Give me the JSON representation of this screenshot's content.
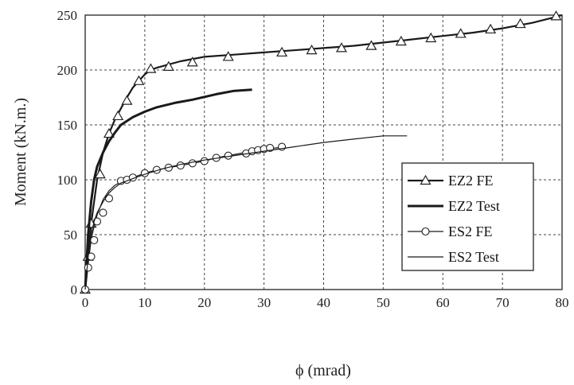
{
  "chart_data": {
    "type": "line",
    "xlabel": "ϕ (mrad)",
    "ylabel": "Moment (kN.m.)",
    "xlim": [
      0,
      80
    ],
    "ylim": [
      0,
      250
    ],
    "xticks": [
      0,
      10,
      20,
      30,
      40,
      50,
      60,
      70,
      80
    ],
    "yticks": [
      0,
      50,
      100,
      150,
      200,
      250
    ],
    "grid": true,
    "grid_style": "dashed",
    "legend_position": "center-right",
    "series": [
      {
        "name": "EZ2 FE",
        "marker": "triangle",
        "line_weight": "medium",
        "x": [
          0,
          0.2,
          0.5,
          1,
          1.5,
          2,
          3,
          4,
          5,
          6,
          7,
          8,
          9,
          10,
          11,
          12,
          14,
          16,
          20,
          25,
          30,
          35,
          40,
          45,
          50,
          55,
          60,
          65,
          70,
          75,
          78,
          80
        ],
        "y": [
          0,
          10,
          30,
          60,
          80,
          100,
          125,
          142,
          155,
          165,
          175,
          184,
          190,
          196,
          200,
          202,
          205,
          208,
          212,
          214,
          216,
          218,
          220,
          222,
          225,
          228,
          231,
          234,
          238,
          243,
          247,
          250
        ],
        "marker_x": [
          0,
          0.5,
          1,
          2.5,
          4,
          5.5,
          7,
          9,
          11,
          14,
          18,
          24,
          33,
          38,
          43,
          48,
          53,
          58,
          63,
          68,
          73,
          79
        ],
        "marker_y": [
          0,
          30,
          60,
          105,
          142,
          158,
          172,
          190,
          201,
          203,
          207,
          212,
          216,
          218,
          220,
          222,
          226,
          229,
          233,
          237,
          242,
          249
        ]
      },
      {
        "name": "EZ2 Test",
        "marker": "none",
        "line_weight": "thick",
        "x": [
          0,
          0.2,
          0.5,
          1,
          1.5,
          2,
          3,
          4,
          5,
          6,
          8,
          10,
          12,
          15,
          18,
          22,
          25,
          28
        ],
        "y": [
          0,
          20,
          50,
          80,
          100,
          112,
          125,
          135,
          143,
          150,
          157,
          162,
          166,
          170,
          173,
          178,
          181,
          182
        ]
      },
      {
        "name": "ES2 FE",
        "marker": "circle",
        "line_weight": "thin",
        "x": [
          0,
          0.3,
          0.6,
          1,
          1.5,
          2,
          3,
          4,
          5,
          6,
          7,
          8,
          10,
          12,
          14,
          16,
          18,
          20,
          22,
          24,
          26,
          28,
          30,
          32,
          33
        ],
        "y": [
          0,
          12,
          28,
          45,
          58,
          68,
          82,
          90,
          95,
          98,
          100,
          102,
          106,
          109,
          111,
          113,
          115,
          117,
          120,
          122,
          124,
          126,
          128,
          129,
          130
        ],
        "marker_x": [
          0,
          0.5,
          1,
          1.5,
          2,
          3,
          4,
          6,
          7,
          8,
          10,
          12,
          14,
          16,
          18,
          20,
          22,
          24,
          27,
          28,
          29,
          30,
          31,
          33
        ],
        "marker_y": [
          0,
          20,
          30,
          45,
          62,
          70,
          83,
          99,
          100,
          102,
          106,
          109,
          111,
          113,
          115,
          117,
          120,
          122,
          124,
          126,
          127,
          128,
          129,
          130
        ]
      },
      {
        "name": "ES2 Test",
        "marker": "none",
        "line_weight": "thin",
        "x": [
          0,
          0.3,
          0.6,
          1,
          1.5,
          2,
          3,
          4,
          5,
          6,
          8,
          10,
          13,
          16,
          20,
          25,
          30,
          35,
          40,
          45,
          50,
          54
        ],
        "y": [
          0,
          18,
          35,
          50,
          62,
          70,
          80,
          88,
          93,
          97,
          101,
          105,
          110,
          114,
          118,
          122,
          126,
          130,
          134,
          137,
          140,
          140
        ]
      }
    ]
  }
}
